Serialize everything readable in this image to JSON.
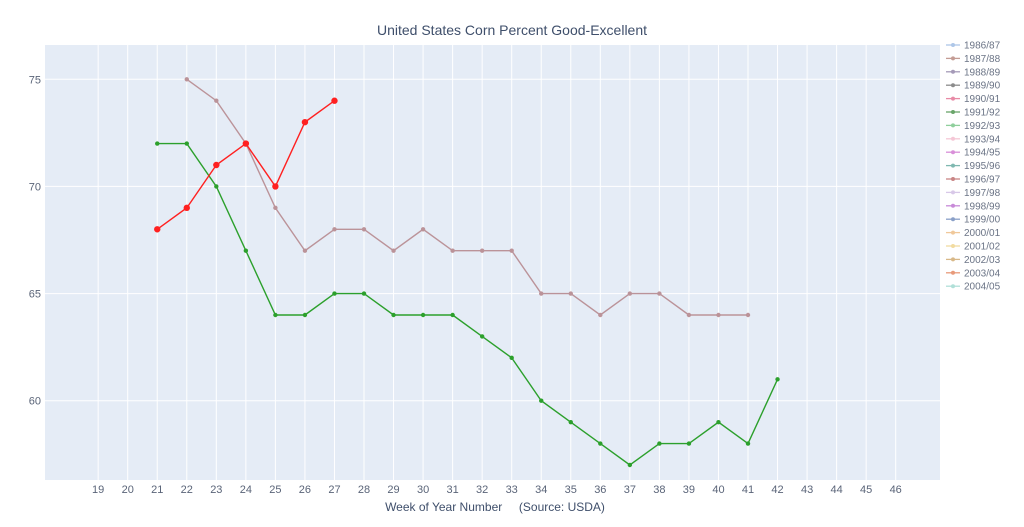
{
  "chart_data": {
    "type": "line",
    "title": "United States Corn Percent Good-Excellent",
    "xlabel": "Week of Year Number     (Source: USDA)",
    "ylabel": "",
    "x_ticks": [
      19,
      20,
      21,
      22,
      23,
      24,
      25,
      26,
      27,
      28,
      29,
      30,
      31,
      32,
      33,
      34,
      35,
      36,
      37,
      38,
      39,
      40,
      41,
      42,
      43,
      44,
      45,
      46
    ],
    "y_ticks": [
      60,
      65,
      70,
      75
    ],
    "xlim": [
      17.2,
      47.5
    ],
    "ylim": [
      56.3,
      76.6
    ],
    "grid": true,
    "legend_position": "right",
    "legend": [
      {
        "name": "1986/87",
        "color": "#aec7e8"
      },
      {
        "name": "1987/88",
        "color": "#c49c94"
      },
      {
        "name": "1988/89",
        "color": "#a59ab8"
      },
      {
        "name": "1989/90",
        "color": "#8c8c8c"
      },
      {
        "name": "1990/91",
        "color": "#e88aa6"
      },
      {
        "name": "1991/92",
        "color": "#6aa56a"
      },
      {
        "name": "1992/93",
        "color": "#8fcf9c"
      },
      {
        "name": "1993/94",
        "color": "#f5c7d6"
      },
      {
        "name": "1994/95",
        "color": "#d98fd9"
      },
      {
        "name": "1995/96",
        "color": "#7fb8b0"
      },
      {
        "name": "1996/97",
        "color": "#c98585"
      },
      {
        "name": "1997/98",
        "color": "#d8c8e8"
      },
      {
        "name": "1998/99",
        "color": "#c88ad8"
      },
      {
        "name": "1999/00",
        "color": "#8aa0c8"
      },
      {
        "name": "2000/01",
        "color": "#f0c89a"
      },
      {
        "name": "2001/02",
        "color": "#f2dca0"
      },
      {
        "name": "2002/03",
        "color": "#d8b888"
      },
      {
        "name": "2003/04",
        "color": "#e89a7a"
      },
      {
        "name": "2004/05",
        "color": "#b0e0d8"
      }
    ],
    "series": [
      {
        "color": "#bb9399",
        "marker_size": 2.2,
        "x": [
          22,
          23,
          24,
          25,
          26,
          27,
          28,
          29,
          30,
          31,
          32,
          33,
          34,
          35,
          36,
          37,
          38,
          39,
          40,
          41
        ],
        "y": [
          75,
          74,
          72,
          69,
          67,
          68,
          68,
          67,
          68,
          67,
          67,
          67,
          65,
          65,
          64,
          65,
          65,
          64,
          64,
          64
        ]
      },
      {
        "color": "#2ca02c",
        "marker_size": 2.2,
        "x": [
          21,
          22,
          23,
          24,
          25,
          26,
          27,
          28,
          29,
          30,
          31,
          32,
          33,
          34,
          35,
          36,
          37,
          38,
          39,
          40,
          41,
          42
        ],
        "y": [
          72,
          72,
          70,
          67,
          64,
          64,
          65,
          65,
          64,
          64,
          64,
          63,
          62,
          60,
          59,
          58,
          57,
          58,
          58,
          59,
          58,
          61
        ]
      },
      {
        "color": "#ff2020",
        "marker_size": 3.2,
        "x": [
          21,
          22,
          23,
          24,
          25,
          26,
          27
        ],
        "y": [
          68,
          69,
          71,
          72,
          70,
          73,
          74
        ]
      }
    ]
  }
}
